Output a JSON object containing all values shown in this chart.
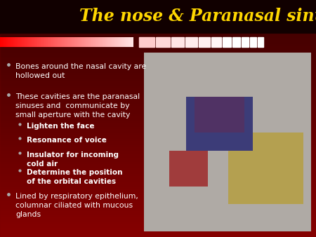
{
  "title": "The nose & Paranasal sinuses",
  "title_color": "#FFD700",
  "bg_top_color": "#1a0000",
  "bg_bottom_color": "#9B0000",
  "bullet_color": "#FFFFFF",
  "bullets_main": [
    "Bones around the nasal cavity are\nhollowed out",
    "These cavities are the paranasal\nsinuses and  communicate by\nsmall aperture with the cavity",
    "Lined by respiratory epithelium,\ncolumnar ciliated with mucous\nglands"
  ],
  "sub_bullets": [
    "Lighten the face",
    "Resonance of voice",
    "Insulator for incoming\ncold air",
    "Determine the position\nof the orbital cavities"
  ],
  "bar_segment_colors": [
    "#FF0000",
    "#FF3333",
    "#FF6666",
    "#FF9999",
    "#FFBBBB",
    "#FFDDDD",
    "#FFEEEE",
    "#FFFFFF",
    "#FFFFFF",
    "#FFFFFF",
    "#FFFFFF",
    "#FFFFFF",
    "#FFFFFF",
    "#FFFFFF",
    "#FFFFFF"
  ],
  "font_size_title": 17,
  "font_size_main": 7.8,
  "font_size_sub": 7.5
}
